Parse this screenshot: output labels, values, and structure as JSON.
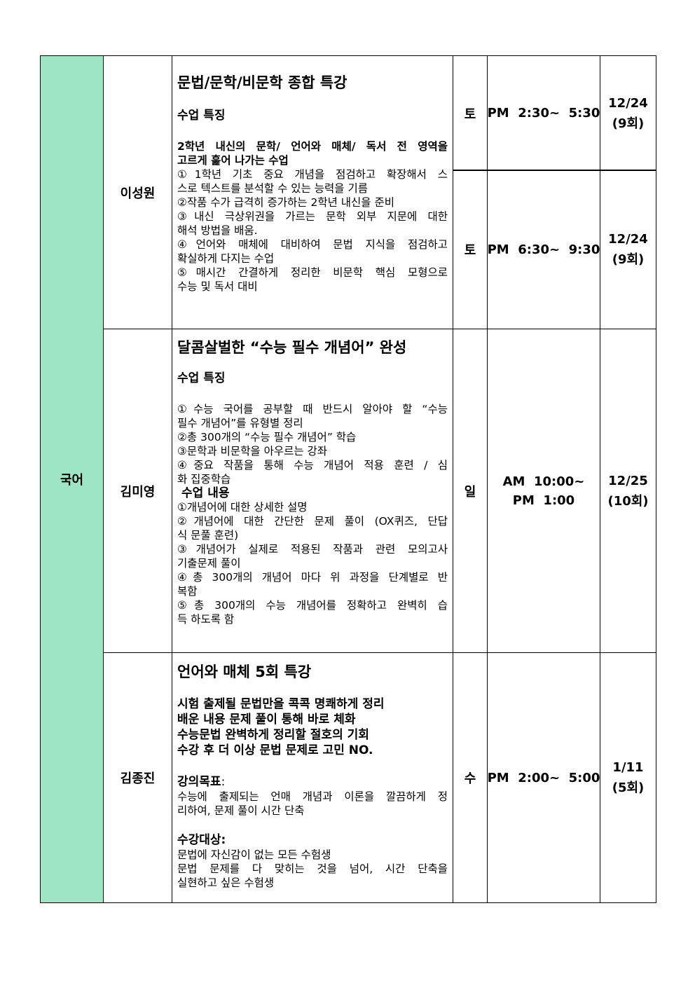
{
  "colors": {
    "subject_bg": "#9ee5c5",
    "border": "#000000"
  },
  "subject": "국어",
  "courses": [
    {
      "teacher": "이성원",
      "title": "문법/문학/비문학 종합 특강",
      "feature_heading": "수업 특징",
      "intro_lines": [
        "2학년 내신의 문학/ 언어와 매체/ 독서 전 영역을",
        "고르게 훑어 나가는 수업"
      ],
      "items": [
        [
          "①1학년 기초 중요 개념을 점검하고 확장해서 스",
          "스로 텍스트를 분석할 수 있는 능력을 기름"
        ],
        [
          "②작품 수가 급격히 증가하는 2학년 내신을 준비"
        ],
        [
          "③내신 극상위권을 가르는 문학 외부 지문에 대한",
          "해석 방법을 배움."
        ],
        [
          "④언어와 매체에 대비하여 문법 지식을 점검하고",
          "확실하게 다지는 수업"
        ],
        [
          "⑤매시간 간결하게 정리한 비문학 핵심 모형으로",
          "수능 및 독서 대비"
        ]
      ],
      "sessions": [
        {
          "day": "토",
          "time": "PM  2:30~  5:30",
          "date": "12/24",
          "count": "(9회)"
        },
        {
          "day": "토",
          "time": "PM  6:30~  9:30",
          "date": "12/24",
          "count": "(9회)"
        }
      ]
    },
    {
      "teacher": "김미영",
      "title": "달콤살벌한 “수능 필수 개념어” 완성",
      "feature_heading": "수업 특징",
      "items": [
        [
          "①수능 국어를 공부할 때 반드시 알아야 할 “수능",
          "필수 개념어”를 유형별 정리"
        ],
        [
          "②총 300개의 “수능 필수 개념어” 학습"
        ],
        [
          "③문학과 비문학을 아우르는 강좌"
        ],
        [
          "④중요 작품을 통해 수능 개념어 적용 훈련 / 심",
          "화 집중학습"
        ]
      ],
      "content_heading": "수업 내용",
      "content_items": [
        [
          "①개념어에 대한 상세한 설명"
        ],
        [
          "②개념어에 대한 간단한 문제 풀이 (OX퀴즈, 단답",
          "식 문풀 훈련)"
        ],
        [
          "③개념어가 실제로 적용된 작품과 관련 모의고사",
          "기출문제 풀이"
        ],
        [
          "④총 300개의 개념어 마다 위 과정을 단계별로 반",
          "복함"
        ],
        [
          "⑤총 300개의 수능 개념어를 정확하고 완벽히 습",
          "득 하도록 함"
        ]
      ],
      "sessions": [
        {
          "day": "일",
          "time_line1": "AM  10:00~",
          "time_line2": "PM  1:00",
          "date": "12/25",
          "count": "(10회)"
        }
      ]
    },
    {
      "teacher": "김종진",
      "title": "언어와 매체 5회 특강",
      "bold_lines": [
        "시험 출제될 문법만을 콕콕 명쾌하게 정리",
        "배운 내용 문제 풀이 통해 바로 체화",
        "수능문법 완벽하게 정리할 절호의 기회",
        "수강 후 더 이상 문법 문제로 고민 NO."
      ],
      "goal_label": "강의목표",
      "goal_colon": ":",
      "goal_lines": [
        [
          "수능에 출제되는 언매 개념과 이론을 깔끔하게 정",
          "리하여, 문제 풀이 시간 단축"
        ]
      ],
      "target_label": "수강대상:",
      "target_lines": [
        [
          "문법에 자신감이 없는 모든 수험생"
        ],
        [
          "문법 문제를 다 맞히는 것을 넘어, 시간 단축을",
          "실현하고 싶은 수험생"
        ]
      ],
      "sessions": [
        {
          "day": "수",
          "time": "PM  2:00~  5:00",
          "date": "1/11",
          "count": "(5회)"
        }
      ]
    }
  ]
}
